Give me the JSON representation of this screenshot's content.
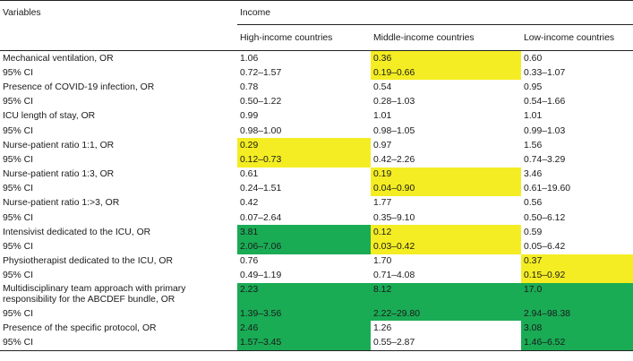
{
  "table": {
    "header": {
      "variables": "Variables",
      "income": "Income",
      "columns": [
        "High-income countries",
        "Middle-income countries",
        "Low-income countries"
      ]
    },
    "colors": {
      "yellow": "#f4ed23",
      "green": "#1aab55"
    },
    "rows": [
      {
        "label": "Mechanical ventilation, OR",
        "values": [
          "1.06",
          "0.36",
          "0.60"
        ],
        "highlight": [
          "",
          "y",
          ""
        ]
      },
      {
        "label": "95% CI",
        "values": [
          "0.72–1.57",
          "0.19–0.66",
          "0.33–1.07"
        ],
        "highlight": [
          "",
          "y",
          ""
        ]
      },
      {
        "label": "Presence of COVID-19 infection, OR",
        "values": [
          "0.78",
          "0.54",
          "0.95"
        ],
        "highlight": [
          "",
          "",
          ""
        ]
      },
      {
        "label": "95% CI",
        "values": [
          "0.50–1.22",
          "0.28–1.03",
          "0.54–1.66"
        ],
        "highlight": [
          "",
          "",
          ""
        ]
      },
      {
        "label": "ICU length of stay, OR",
        "values": [
          "0.99",
          "1.01",
          "1.01"
        ],
        "highlight": [
          "",
          "",
          ""
        ]
      },
      {
        "label": "95% CI",
        "values": [
          "0.98–1.00",
          "0.98–1.05",
          "0.99–1.03"
        ],
        "highlight": [
          "",
          "",
          ""
        ]
      },
      {
        "label": "Nurse-patient ratio 1:1, OR",
        "values": [
          "0.29",
          "0.97",
          "1.56"
        ],
        "highlight": [
          "y",
          "",
          ""
        ]
      },
      {
        "label": "95% CI",
        "values": [
          "0.12–0.73",
          "0.42–2.26",
          "0.74–3.29"
        ],
        "highlight": [
          "y",
          "",
          ""
        ]
      },
      {
        "label": "Nurse-patient ratio 1:3, OR",
        "values": [
          "0.61",
          "0.19",
          "3.46"
        ],
        "highlight": [
          "",
          "y",
          ""
        ]
      },
      {
        "label": "95% CI",
        "values": [
          "0.24–1.51",
          "0.04–0.90",
          "0.61–19.60"
        ],
        "highlight": [
          "",
          "y",
          ""
        ]
      },
      {
        "label": "Nurse-patient ratio 1:>3, OR",
        "values": [
          "0.42",
          "1.77",
          "0.56"
        ],
        "highlight": [
          "",
          "",
          ""
        ]
      },
      {
        "label": "95% CI",
        "values": [
          "0.07–2.64",
          "0.35–9.10",
          "0.50–6.12"
        ],
        "highlight": [
          "",
          "",
          ""
        ]
      },
      {
        "label": "Intensivist dedicated to the ICU, OR",
        "values": [
          "3.81",
          "0.12",
          "0.59"
        ],
        "highlight": [
          "g",
          "y",
          ""
        ]
      },
      {
        "label": "95% CI",
        "values": [
          "2.06–7.06",
          "0.03–0.42",
          "0.05–6.42"
        ],
        "highlight": [
          "g",
          "y",
          ""
        ]
      },
      {
        "label": "Physiotherapist dedicated to the ICU, OR",
        "values": [
          "0.76",
          "1.70",
          "0.37"
        ],
        "highlight": [
          "",
          "",
          "y"
        ]
      },
      {
        "label": "95% CI",
        "values": [
          "0.49–1.19",
          "0.71–4.08",
          "0.15–0.92"
        ],
        "highlight": [
          "",
          "",
          "y"
        ]
      },
      {
        "label": "Multidisciplinary team approach with primary responsibility for the ABCDEF bundle, OR",
        "values": [
          "2.23",
          "8.12",
          "17.0"
        ],
        "highlight": [
          "g",
          "g",
          "g"
        ],
        "tall": true
      },
      {
        "label": "95% CI",
        "values": [
          "1.39–3.56",
          "2.22–29.80",
          "2.94–98.38"
        ],
        "highlight": [
          "g",
          "g",
          "g"
        ]
      },
      {
        "label": "Presence of the specific protocol, OR",
        "values": [
          "2.46",
          "1.26",
          "3.08"
        ],
        "highlight": [
          "g",
          "",
          "g"
        ]
      },
      {
        "label": "95% CI",
        "values": [
          "1.57–3.45",
          "0.55–2.87",
          "1.46–6.52"
        ],
        "highlight": [
          "g",
          "",
          "g"
        ]
      }
    ]
  }
}
